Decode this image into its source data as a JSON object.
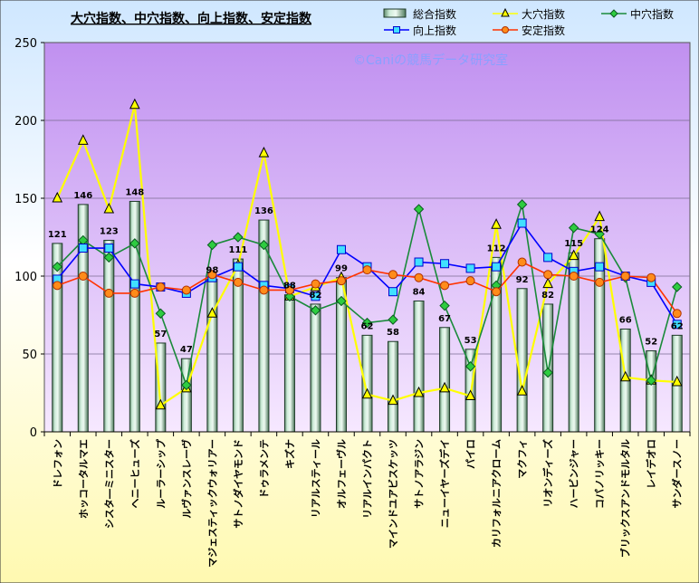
{
  "chart_data": {
    "type": "bar",
    "title": "大穴指数、中穴指数、向上指数、安定指数",
    "watermark": "©Caniの競馬データ研究室",
    "ylim": [
      0,
      250
    ],
    "yticks": [
      0,
      50,
      100,
      150,
      200,
      250
    ],
    "categories": [
      "ドレフォン",
      "ホッコータルマエ",
      "シスタ―ミニスター",
      "ヘニーヒューズ",
      "ルーラーシップ",
      "ルヴァンスレーヴ",
      "マジェスティックウォリアー",
      "サトノダイヤモンド",
      "ドゥラメンテ",
      "キズナ",
      "リアルスティール",
      "オルフェーヴル",
      "リアルインパクト",
      "マインドユアビスケッツ",
      "サトノアラジン",
      "ニューイヤーズデイ",
      "パイロ",
      "カリフォルニアクローム",
      "マクフィ",
      "リオンディーズ",
      "ハービンジャー",
      "コパノリッキー",
      "ブリックスアンドモルタル",
      "レイデオロ",
      "サンダースノー"
    ],
    "series": [
      {
        "name": "総合指数",
        "type": "bar",
        "color": "#b8e0c8",
        "label_values": [
          "121",
          "146",
          "123",
          "148",
          "57",
          "47",
          "98",
          "111",
          "136",
          "88",
          "82",
          "99",
          "62",
          "58",
          "84",
          "67",
          "53",
          "112",
          "92",
          "82",
          "115",
          "124",
          "66",
          "52",
          "62"
        ],
        "values": [
          121,
          146,
          123,
          148,
          57,
          47,
          98,
          111,
          136,
          88,
          82,
          99,
          62,
          58,
          84,
          67,
          53,
          112,
          92,
          82,
          115,
          124,
          66,
          52,
          62
        ]
      },
      {
        "name": "大穴指数",
        "type": "line",
        "color": "#ffff00",
        "marker": "triangle",
        "values": [
          150,
          187,
          143,
          210,
          17,
          28,
          76,
          107,
          179,
          87,
          93,
          99,
          24,
          20,
          25,
          28,
          23,
          133,
          26,
          95,
          113,
          138,
          35,
          33,
          32
        ]
      },
      {
        "name": "中穴指数",
        "type": "line",
        "color": "#1a8a3a",
        "marker": "diamond",
        "values": [
          106,
          123,
          112,
          121,
          76,
          30,
          120,
          125,
          120,
          87,
          78,
          84,
          70,
          72,
          143,
          81,
          42,
          94,
          146,
          38,
          131,
          127,
          99,
          33,
          93
        ]
      },
      {
        "name": "向上指数",
        "type": "line",
        "color": "#0000ff",
        "marker": "square",
        "values": [
          98,
          118,
          118,
          95,
          93,
          89,
          99,
          106,
          94,
          92,
          87,
          117,
          106,
          90,
          109,
          108,
          105,
          106,
          134,
          112,
          103,
          106,
          100,
          96,
          69
        ]
      },
      {
        "name": "安定指数",
        "type": "line",
        "color": "#ff3300",
        "marker": "circle",
        "values": [
          94,
          100,
          89,
          89,
          93,
          91,
          101,
          96,
          91,
          91,
          95,
          97,
          104,
          101,
          99,
          94,
          97,
          90,
          109,
          101,
          100,
          96,
          100,
          99,
          76
        ]
      }
    ]
  }
}
